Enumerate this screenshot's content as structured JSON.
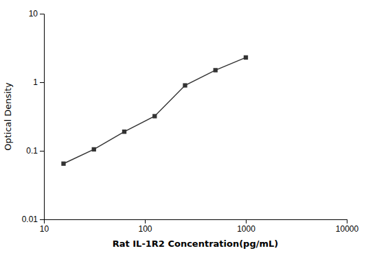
{
  "chart_data": {
    "type": "line",
    "x": [
      15.625,
      31.25,
      62.5,
      125,
      250,
      500,
      1000
    ],
    "values": [
      0.065,
      0.105,
      0.19,
      0.32,
      0.9,
      1.5,
      2.3
    ],
    "xlabel": "Rat IL-1R2 Concentration(pg/mL)",
    "ylabel": "Optical Density",
    "xlim": [
      10,
      10000
    ],
    "ylim": [
      0.01,
      10
    ],
    "xticks": [
      10,
      100,
      1000,
      10000
    ],
    "yticks": [
      0.01,
      0.1,
      1,
      10
    ],
    "log": true,
    "grid": false,
    "marker": "square",
    "color": "#333333"
  }
}
